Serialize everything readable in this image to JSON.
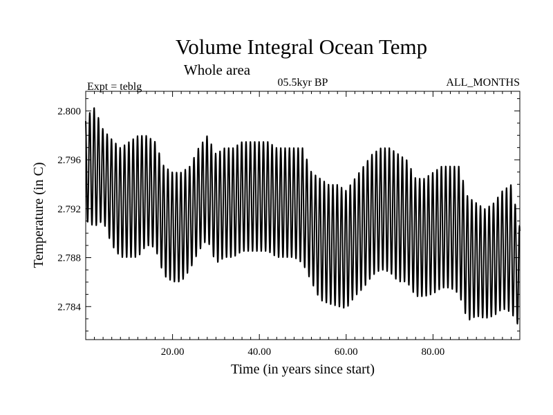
{
  "chart_data": {
    "type": "line",
    "title": "Volume Integral Ocean Temp",
    "subtitle": "Whole area",
    "experiment_label": "Expt = teblg",
    "period_label": "05.5kyr BP",
    "months_label": "ALL_MONTHS",
    "xlabel": "Time (in years since start)",
    "ylabel": "Temperature (in C)",
    "xlim": [
      0,
      100
    ],
    "ylim": [
      2.7813,
      2.8016
    ],
    "x_ticks": [
      20,
      40,
      60,
      80
    ],
    "x_tick_labels": [
      "20.00",
      "40.00",
      "60.00",
      "80.00"
    ],
    "y_ticks": [
      2.784,
      2.788,
      2.792,
      2.796,
      2.8
    ],
    "y_tick_labels": [
      "2.784",
      "2.788",
      "2.792",
      "2.796",
      "2.800"
    ],
    "series": [
      {
        "name": "Volume integral ocean temperature",
        "description": "Monthly values with a strong annual cycle (~1 cycle per year)",
        "cycles_per_year": 1,
        "annual_envelope": {
          "years": [
            0,
            2,
            4,
            6,
            8,
            10,
            12,
            14,
            16,
            18,
            20,
            22,
            24,
            26,
            28,
            30,
            32,
            34,
            36,
            38,
            40,
            42,
            44,
            46,
            48,
            50,
            52,
            54,
            56,
            58,
            60,
            62,
            64,
            66,
            68,
            70,
            72,
            74,
            76,
            78,
            80,
            82,
            84,
            86,
            88,
            90,
            92,
            94,
            96,
            98,
            100
          ],
          "max": [
            2.7995,
            2.8003,
            2.7985,
            2.7977,
            2.797,
            2.7975,
            2.798,
            2.798,
            2.7975,
            2.7955,
            2.795,
            2.795,
            2.7955,
            2.797,
            2.798,
            2.7965,
            2.797,
            2.797,
            2.7975,
            2.7975,
            2.7975,
            2.7975,
            2.797,
            2.797,
            2.797,
            2.797,
            2.795,
            2.7945,
            2.794,
            2.794,
            2.7935,
            2.7945,
            2.7955,
            2.7965,
            2.797,
            2.797,
            2.7965,
            2.796,
            2.7945,
            2.7945,
            2.795,
            2.7955,
            2.7955,
            2.7955,
            2.793,
            2.7925,
            2.792,
            2.7925,
            2.7935,
            2.794,
            2.7905
          ],
          "min": [
            2.791,
            2.7905,
            2.791,
            2.789,
            2.788,
            2.788,
            2.788,
            2.789,
            2.7888,
            2.7865,
            2.786,
            2.786,
            2.787,
            2.7885,
            2.7895,
            2.7875,
            2.788,
            2.788,
            2.7885,
            2.7885,
            2.7885,
            2.7885,
            2.788,
            2.788,
            2.788,
            2.7875,
            2.786,
            2.7845,
            2.7842,
            2.784,
            2.7838,
            2.7848,
            2.7855,
            2.7865,
            2.787,
            2.7868,
            2.786,
            2.786,
            2.7848,
            2.7848,
            2.785,
            2.7855,
            2.7855,
            2.785,
            2.7828,
            2.7832,
            2.783,
            2.7832,
            2.7838,
            2.7835,
            2.7822
          ]
        }
      }
    ]
  }
}
